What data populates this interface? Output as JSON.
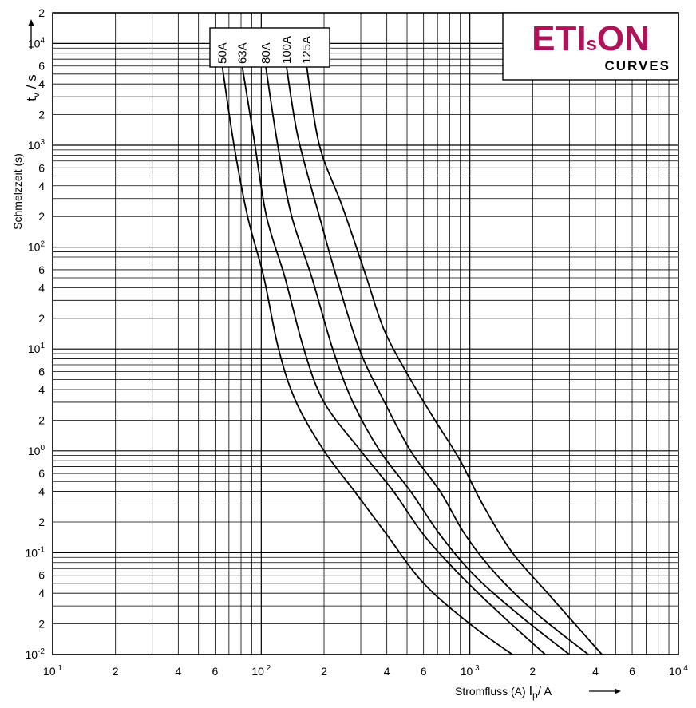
{
  "chart_data": {
    "type": "line",
    "x_scale": "log",
    "y_scale": "log",
    "xlim": [
      10,
      10000
    ],
    "ylim": [
      0.01,
      20000
    ],
    "grid": true,
    "x_ticks": [
      {
        "v": 10,
        "m": "10",
        "e": "1"
      },
      {
        "v": 20,
        "m": "2",
        "e": ""
      },
      {
        "v": 40,
        "m": "4",
        "e": ""
      },
      {
        "v": 60,
        "m": "6",
        "e": ""
      },
      {
        "v": 100,
        "m": "10",
        "e": "2"
      },
      {
        "v": 200,
        "m": "2",
        "e": ""
      },
      {
        "v": 400,
        "m": "4",
        "e": ""
      },
      {
        "v": 600,
        "m": "6",
        "e": ""
      },
      {
        "v": 1000,
        "m": "10",
        "e": "3"
      },
      {
        "v": 2000,
        "m": "2",
        "e": ""
      },
      {
        "v": 4000,
        "m": "4",
        "e": ""
      },
      {
        "v": 6000,
        "m": "6",
        "e": ""
      },
      {
        "v": 10000,
        "m": "10",
        "e": "4"
      }
    ],
    "y_ticks": [
      {
        "v": 20000,
        "m": "2",
        "e": ""
      },
      {
        "v": 10000,
        "m": "10",
        "e": "4"
      },
      {
        "v": 6000,
        "m": "6",
        "e": ""
      },
      {
        "v": 4000,
        "m": "4",
        "e": ""
      },
      {
        "v": 2000,
        "m": "2",
        "e": ""
      },
      {
        "v": 1000,
        "m": "10",
        "e": "3"
      },
      {
        "v": 600,
        "m": "6",
        "e": ""
      },
      {
        "v": 400,
        "m": "4",
        "e": ""
      },
      {
        "v": 200,
        "m": "2",
        "e": ""
      },
      {
        "v": 100,
        "m": "10",
        "e": "2"
      },
      {
        "v": 60,
        "m": "6",
        "e": ""
      },
      {
        "v": 40,
        "m": "4",
        "e": ""
      },
      {
        "v": 20,
        "m": "2",
        "e": ""
      },
      {
        "v": 10,
        "m": "10",
        "e": "1"
      },
      {
        "v": 6,
        "m": "6",
        "e": ""
      },
      {
        "v": 4,
        "m": "4",
        "e": ""
      },
      {
        "v": 2,
        "m": "2",
        "e": ""
      },
      {
        "v": 1,
        "m": "10",
        "e": "0"
      },
      {
        "v": 0.6,
        "m": "6",
        "e": ""
      },
      {
        "v": 0.4,
        "m": "4",
        "e": ""
      },
      {
        "v": 0.2,
        "m": "2",
        "e": ""
      },
      {
        "v": 0.1,
        "m": "10",
        "e": "-1"
      },
      {
        "v": 0.06,
        "m": "6",
        "e": ""
      },
      {
        "v": 0.04,
        "m": "4",
        "e": ""
      },
      {
        "v": 0.02,
        "m": "2",
        "e": ""
      },
      {
        "v": 0.01,
        "m": "10",
        "e": "-2"
      }
    ],
    "xlabel": {
      "prefix": "Stromfluss (A)",
      "symbol": "I",
      "sub": "p",
      "unit": "/ A"
    },
    "ylabel": {
      "symbol": "t",
      "sub": "v",
      "unit": "/ s"
    },
    "ylabel2": "Schmelzzeit (s)",
    "series": [
      {
        "name": "50A",
        "points": [
          [
            65,
            6000
          ],
          [
            74,
            1000
          ],
          [
            86,
            200
          ],
          [
            103,
            50
          ],
          [
            121,
            10
          ],
          [
            147,
            3
          ],
          [
            200,
            1
          ],
          [
            280,
            0.4
          ],
          [
            400,
            0.15
          ],
          [
            600,
            0.05
          ],
          [
            1000,
            0.02
          ],
          [
            1600,
            0.01
          ]
        ]
      },
      {
        "name": "63A",
        "points": [
          [
            81,
            6000
          ],
          [
            92,
            1200
          ],
          [
            106,
            200
          ],
          [
            130,
            50
          ],
          [
            160,
            10
          ],
          [
            200,
            3
          ],
          [
            300,
            1
          ],
          [
            430,
            0.4
          ],
          [
            600,
            0.15
          ],
          [
            900,
            0.06
          ],
          [
            1400,
            0.025
          ],
          [
            2300,
            0.01
          ]
        ]
      },
      {
        "name": "80A",
        "points": [
          [
            105,
            6000
          ],
          [
            120,
            1000
          ],
          [
            140,
            200
          ],
          [
            175,
            50
          ],
          [
            220,
            10
          ],
          [
            275,
            3
          ],
          [
            370,
            1
          ],
          [
            520,
            0.4
          ],
          [
            720,
            0.15
          ],
          [
            1050,
            0.06
          ],
          [
            1700,
            0.025
          ],
          [
            3000,
            0.01
          ]
        ]
      },
      {
        "name": "100A",
        "points": [
          [
            132,
            6000
          ],
          [
            150,
            1200
          ],
          [
            190,
            200
          ],
          [
            230,
            50
          ],
          [
            295,
            10
          ],
          [
            390,
            3
          ],
          [
            520,
            1
          ],
          [
            720,
            0.4
          ],
          [
            950,
            0.15
          ],
          [
            1350,
            0.06
          ],
          [
            2100,
            0.025
          ],
          [
            3700,
            0.01
          ]
        ]
      },
      {
        "name": "125A",
        "points": [
          [
            165,
            6000
          ],
          [
            190,
            1000
          ],
          [
            245,
            250
          ],
          [
            320,
            50
          ],
          [
            390,
            15
          ],
          [
            520,
            5
          ],
          [
            680,
            2
          ],
          [
            900,
            0.8
          ],
          [
            1150,
            0.3
          ],
          [
            1600,
            0.1
          ],
          [
            2500,
            0.035
          ],
          [
            4300,
            0.01
          ]
        ]
      }
    ]
  },
  "logo": {
    "main": "ETI",
    "small": "s",
    "tail": "ON",
    "sub": "CURVES"
  },
  "colors": {
    "logo_main": "#b0125a",
    "logo_sub": "#2b2b2b",
    "curve": "#000000",
    "grid": "#000000"
  }
}
